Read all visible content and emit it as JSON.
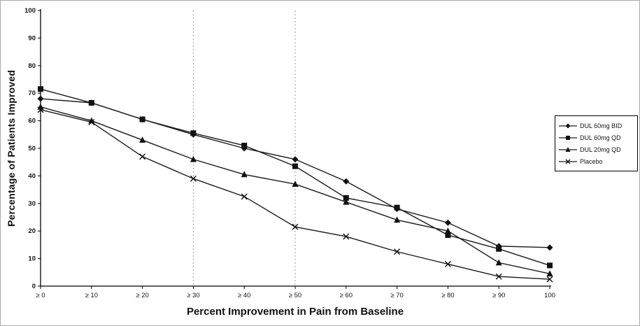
{
  "chart_data": {
    "type": "line",
    "title": "",
    "xlabel": "Percent Improvement in Pain from Baseline",
    "ylabel": "Percentage of Patients Improved",
    "ylim": [
      0,
      100
    ],
    "ytick_step": 10,
    "grid": "dashed vertical reference lines at ≥ 30 and ≥ 50 only",
    "legend_position": "right-outside",
    "categories": [
      "≥ 0",
      "≥ 10",
      "≥ 20",
      "≥ 30",
      "≥ 40",
      "≥ 50",
      "≥ 60",
      "≥ 70",
      "≥ 80",
      "≥ 90",
      "100"
    ],
    "dashed_gridline_indices": [
      3,
      5
    ],
    "series": [
      {
        "name": "DUL 60mg BID",
        "marker": "diamond",
        "values": [
          68,
          66.5,
          60.5,
          55,
          50,
          46,
          38,
          28,
          23,
          14.5,
          14
        ]
      },
      {
        "name": "DUL 60mg QD",
        "marker": "square",
        "values": [
          71.5,
          66.5,
          60.5,
          55.5,
          51,
          43.5,
          32,
          28.5,
          18.5,
          13.5,
          7.5
        ]
      },
      {
        "name": "DUL 20mg QD",
        "marker": "triangle",
        "values": [
          65,
          60,
          53,
          46,
          40.5,
          37,
          30.5,
          24,
          20,
          8.5,
          4.5
        ]
      },
      {
        "name": "Placebo",
        "marker": "x",
        "values": [
          64,
          59.5,
          47,
          39,
          32.5,
          21.5,
          18,
          12.5,
          8,
          3.5,
          2.5
        ]
      }
    ],
    "colors": {
      "line": "#1a1a1a",
      "marker": "#111111",
      "axis": "#000000",
      "dashed_grid": "#999999",
      "background": "#ffffff"
    }
  }
}
